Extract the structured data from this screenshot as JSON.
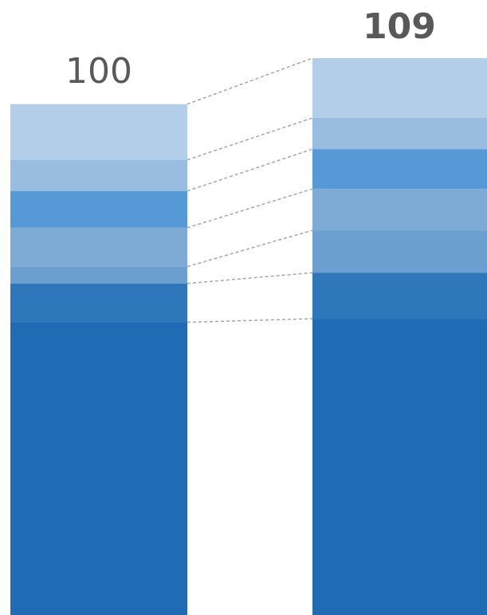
{
  "chart_data": {
    "type": "stacked-bar",
    "totals": [
      100,
      109
    ],
    "series": [
      {
        "color": "#1f6cb4",
        "values": [
          57.3,
          58.0
        ]
      },
      {
        "color": "#2f77bb",
        "values": [
          7.6,
          9.0
        ]
      },
      {
        "color": "#6a9fd0",
        "values": [
          3.3,
          8.3
        ]
      },
      {
        "color": "#7eaad6",
        "values": [
          7.6,
          8.1
        ]
      },
      {
        "color": "#5599d6",
        "values": [
          7.2,
          7.8
        ]
      },
      {
        "color": "#98bde0",
        "values": [
          6.1,
          6.1
        ]
      },
      {
        "color": "#b3cee8",
        "values": [
          10.9,
          11.7
        ]
      }
    ]
  }
}
